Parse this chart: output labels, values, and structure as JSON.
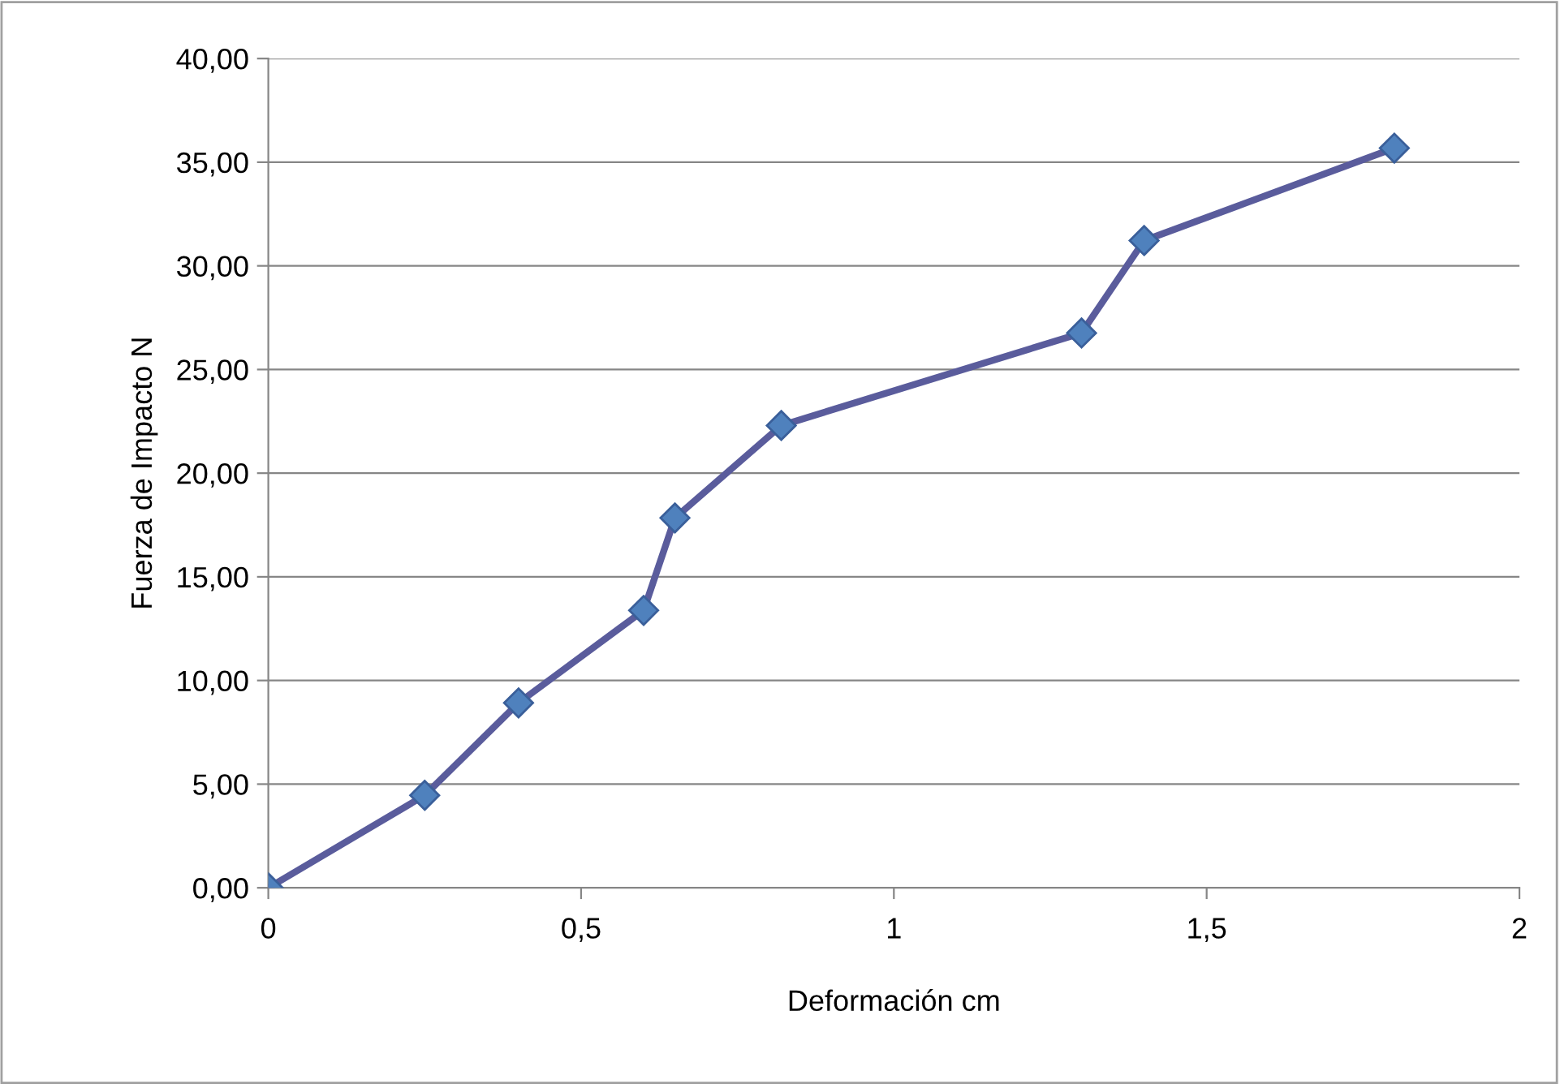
{
  "chart_data": {
    "type": "line",
    "xlabel": "Deformación cm",
    "ylabel": "Fuerza de Impacto N",
    "x": [
      0,
      0.25,
      0.4,
      0.6,
      0.65,
      0.82,
      1.3,
      1.4,
      1.8
    ],
    "series": [
      {
        "color": "#5a5c9c",
        "values": [
          0,
          4.46,
          8.92,
          13.38,
          17.84,
          22.3,
          26.76,
          31.22,
          35.68
        ]
      }
    ],
    "xlim": [
      0,
      2
    ],
    "xticks": [
      0,
      {
        "value": 0.5,
        "label": "0,5"
      },
      1,
      {
        "value": 1.5,
        "label": "1,5"
      },
      2
    ],
    "ylim": [
      0,
      40
    ],
    "yticks": [
      {
        "value": 0,
        "label": "0,00"
      },
      {
        "value": 5,
        "label": "5,00"
      },
      {
        "value": 10,
        "label": "10,00"
      },
      {
        "value": 15,
        "label": "15,00"
      },
      {
        "value": 20,
        "label": "20,00"
      },
      {
        "value": 25,
        "label": "25,00"
      },
      {
        "value": 30,
        "label": "30,00"
      },
      {
        "value": 35,
        "label": "35,00"
      },
      {
        "value": 40,
        "label": "40,00"
      }
    ],
    "grid": "y",
    "marker": "diamond",
    "line_style": "solid",
    "legend": false
  }
}
